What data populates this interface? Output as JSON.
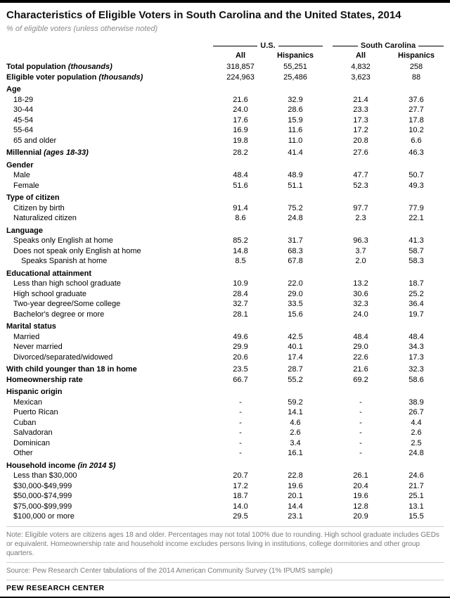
{
  "chart_data": {
    "type": "table",
    "title": "Characteristics of Eligible Voters in South Carolina and the United States, 2014",
    "subtitle": "% of eligible voters (unless otherwise noted)",
    "column_groups": [
      {
        "label": "U.S.",
        "span": 2
      },
      {
        "label": "South Carolina",
        "span": 2
      }
    ],
    "columns": [
      "All",
      "Hispanics",
      "All",
      "Hispanics"
    ],
    "rows": [
      {
        "label": "Total population",
        "label_note": "(thousands)",
        "style": "bold",
        "values": [
          "318,857",
          "55,251",
          "4,832",
          "258"
        ]
      },
      {
        "label": "Eligible voter population",
        "label_note": "(thousands)",
        "style": "bold",
        "values": [
          "224,963",
          "25,486",
          "3,623",
          "88"
        ]
      },
      {
        "label": "Age",
        "style": "section",
        "values": [
          "",
          "",
          "",
          ""
        ]
      },
      {
        "label": "18-29",
        "style": "indent",
        "values": [
          "21.6",
          "32.9",
          "21.4",
          "37.6"
        ]
      },
      {
        "label": "30-44",
        "style": "indent",
        "values": [
          "24.0",
          "28.6",
          "23.3",
          "27.7"
        ]
      },
      {
        "label": "45-54",
        "style": "indent",
        "values": [
          "17.6",
          "15.9",
          "17.3",
          "17.8"
        ]
      },
      {
        "label": "55-64",
        "style": "indent",
        "values": [
          "16.9",
          "11.6",
          "17.2",
          "10.2"
        ]
      },
      {
        "label": "65 and older",
        "style": "indent",
        "values": [
          "19.8",
          "11.0",
          "20.8",
          "6.6"
        ]
      },
      {
        "label": "Millennial",
        "label_note": "(ages 18-33)",
        "style": "bold",
        "values": [
          "28.2",
          "41.4",
          "27.6",
          "46.3"
        ]
      },
      {
        "label": "Gender",
        "style": "section",
        "values": [
          "",
          "",
          "",
          ""
        ]
      },
      {
        "label": "Male",
        "style": "indent",
        "values": [
          "48.4",
          "48.9",
          "47.7",
          "50.7"
        ]
      },
      {
        "label": "Female",
        "style": "indent",
        "values": [
          "51.6",
          "51.1",
          "52.3",
          "49.3"
        ]
      },
      {
        "label": "Type of citizen",
        "style": "section",
        "values": [
          "",
          "",
          "",
          ""
        ]
      },
      {
        "label": "Citizen by birth",
        "style": "indent",
        "values": [
          "91.4",
          "75.2",
          "97.7",
          "77.9"
        ]
      },
      {
        "label": "Naturalized citizen",
        "style": "indent",
        "values": [
          "8.6",
          "24.8",
          "2.3",
          "22.1"
        ]
      },
      {
        "label": "Language",
        "style": "section",
        "values": [
          "",
          "",
          "",
          ""
        ]
      },
      {
        "label": "Speaks only English at home",
        "style": "indent",
        "values": [
          "85.2",
          "31.7",
          "96.3",
          "41.3"
        ]
      },
      {
        "label": "Does not speak only English at home",
        "style": "indent",
        "values": [
          "14.8",
          "68.3",
          "3.7",
          "58.7"
        ]
      },
      {
        "label": "Speaks Spanish at home",
        "style": "indent2",
        "values": [
          "8.5",
          "67.8",
          "2.0",
          "58.3"
        ]
      },
      {
        "label": "Educational attainment",
        "style": "section",
        "values": [
          "",
          "",
          "",
          ""
        ]
      },
      {
        "label": "Less than high school graduate",
        "style": "indent",
        "values": [
          "10.9",
          "22.0",
          "13.2",
          "18.7"
        ]
      },
      {
        "label": "High school graduate",
        "style": "indent",
        "values": [
          "28.4",
          "29.0",
          "30.6",
          "25.2"
        ]
      },
      {
        "label": "Two-year degree/Some college",
        "style": "indent",
        "values": [
          "32.7",
          "33.5",
          "32.3",
          "36.4"
        ]
      },
      {
        "label": "Bachelor's degree or more",
        "style": "indent",
        "values": [
          "28.1",
          "15.6",
          "24.0",
          "19.7"
        ]
      },
      {
        "label": "Marital status",
        "style": "section",
        "values": [
          "",
          "",
          "",
          ""
        ]
      },
      {
        "label": "Married",
        "style": "indent",
        "values": [
          "49.6",
          "42.5",
          "48.4",
          "48.4"
        ]
      },
      {
        "label": "Never married",
        "style": "indent",
        "values": [
          "29.9",
          "40.1",
          "29.0",
          "34.3"
        ]
      },
      {
        "label": "Divorced/separated/widowed",
        "style": "indent",
        "values": [
          "20.6",
          "17.4",
          "22.6",
          "17.3"
        ]
      },
      {
        "label": "With child younger than 18 in home",
        "style": "bold",
        "values": [
          "23.5",
          "28.7",
          "21.6",
          "32.3"
        ]
      },
      {
        "label": "Homeownership rate",
        "style": "bold",
        "values": [
          "66.7",
          "55.2",
          "69.2",
          "58.6"
        ]
      },
      {
        "label": "Hispanic origin",
        "style": "section",
        "values": [
          "",
          "",
          "",
          ""
        ]
      },
      {
        "label": "Mexican",
        "style": "indent",
        "values": [
          "-",
          "59.2",
          "-",
          "38.9"
        ]
      },
      {
        "label": "Puerto Rican",
        "style": "indent",
        "values": [
          "-",
          "14.1",
          "-",
          "26.7"
        ]
      },
      {
        "label": "Cuban",
        "style": "indent",
        "values": [
          "-",
          "4.6",
          "-",
          "4.4"
        ]
      },
      {
        "label": "Salvadoran",
        "style": "indent",
        "values": [
          "-",
          "2.6",
          "-",
          "2.6"
        ]
      },
      {
        "label": "Dominican",
        "style": "indent",
        "values": [
          "-",
          "3.4",
          "-",
          "2.5"
        ]
      },
      {
        "label": "Other",
        "style": "indent",
        "values": [
          "-",
          "16.1",
          "-",
          "24.8"
        ]
      },
      {
        "label": "Household income",
        "label_note": "(in 2014 $)",
        "style": "section",
        "values": [
          "",
          "",
          "",
          ""
        ]
      },
      {
        "label": "Less than $30,000",
        "style": "indent",
        "values": [
          "20.7",
          "22.8",
          "26.1",
          "24.6"
        ]
      },
      {
        "label": "$30,000-$49,999",
        "style": "indent",
        "values": [
          "17.2",
          "19.6",
          "20.4",
          "21.7"
        ]
      },
      {
        "label": "$50,000-$74,999",
        "style": "indent",
        "values": [
          "18.7",
          "20.1",
          "19.6",
          "25.1"
        ]
      },
      {
        "label": "$75,000-$99,999",
        "style": "indent",
        "values": [
          "14.0",
          "14.4",
          "12.8",
          "13.1"
        ]
      },
      {
        "label": "$100,000 or more",
        "style": "indent",
        "values": [
          "29.5",
          "23.1",
          "20.9",
          "15.5"
        ]
      }
    ]
  },
  "footer": {
    "note": "Note: Eligible voters are citizens ages 18 and older. Percentages may not total 100% due to rounding. High school graduate includes GEDs or equivalent. Homeownership rate and household income excludes persons living in institutions, college dormitories and other group quarters.",
    "source": "Source: Pew Research Center tabulations of the 2014 American Community Survey (1% IPUMS sample)",
    "brand": "PEW RESEARCH CENTER"
  },
  "colors": {
    "accent_bar": "#000000",
    "rule": "#cfcfcf",
    "muted_text": "#7a7a7a"
  }
}
